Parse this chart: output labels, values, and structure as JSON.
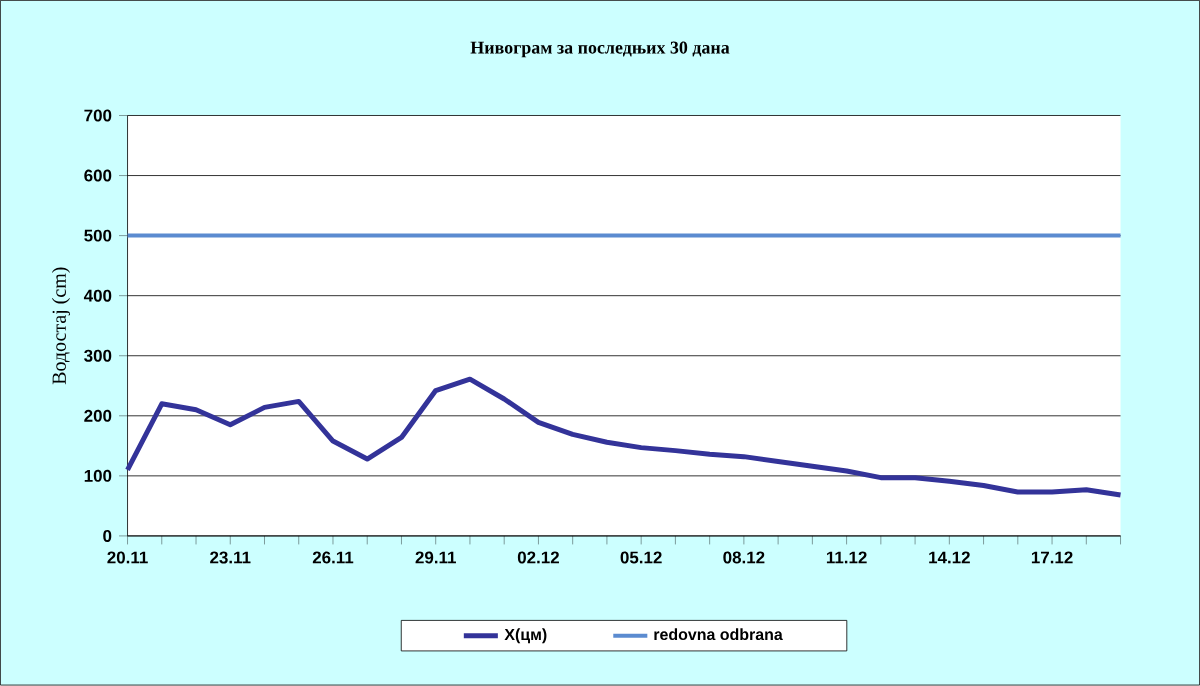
{
  "chart_data": {
    "type": "line",
    "title": "Нивограм за последњих 30 дана",
    "ylabel": "Водостај (cm)",
    "categories": [
      "20.11",
      null,
      null,
      "23.11",
      null,
      null,
      "26.11",
      null,
      null,
      "29.11",
      null,
      null,
      "02.12",
      null,
      null,
      "05.12",
      null,
      null,
      "08.12",
      null,
      null,
      "11.12",
      null,
      null,
      "14.12",
      null,
      null,
      "17.12",
      null,
      null
    ],
    "series": [
      {
        "name": "X(цм)",
        "color": "#333399",
        "values": [
          110,
          220,
          210,
          185,
          214,
          224,
          158,
          128,
          164,
          242,
          261,
          228,
          189,
          169,
          156,
          147,
          142,
          136,
          132,
          124,
          116,
          108,
          97,
          97,
          91,
          84,
          73,
          73,
          77,
          68
        ]
      }
    ],
    "ref_lines": [
      {
        "axis": "y",
        "value": 500,
        "label": "redovna odbrana",
        "color": "#5b8bd0"
      }
    ],
    "ylim": [
      0,
      700
    ],
    "yticks": [
      0,
      100,
      200,
      300,
      400,
      500,
      600,
      700
    ],
    "grid": "y",
    "legend": "bottom",
    "line_style": "solid",
    "marker": "none"
  }
}
